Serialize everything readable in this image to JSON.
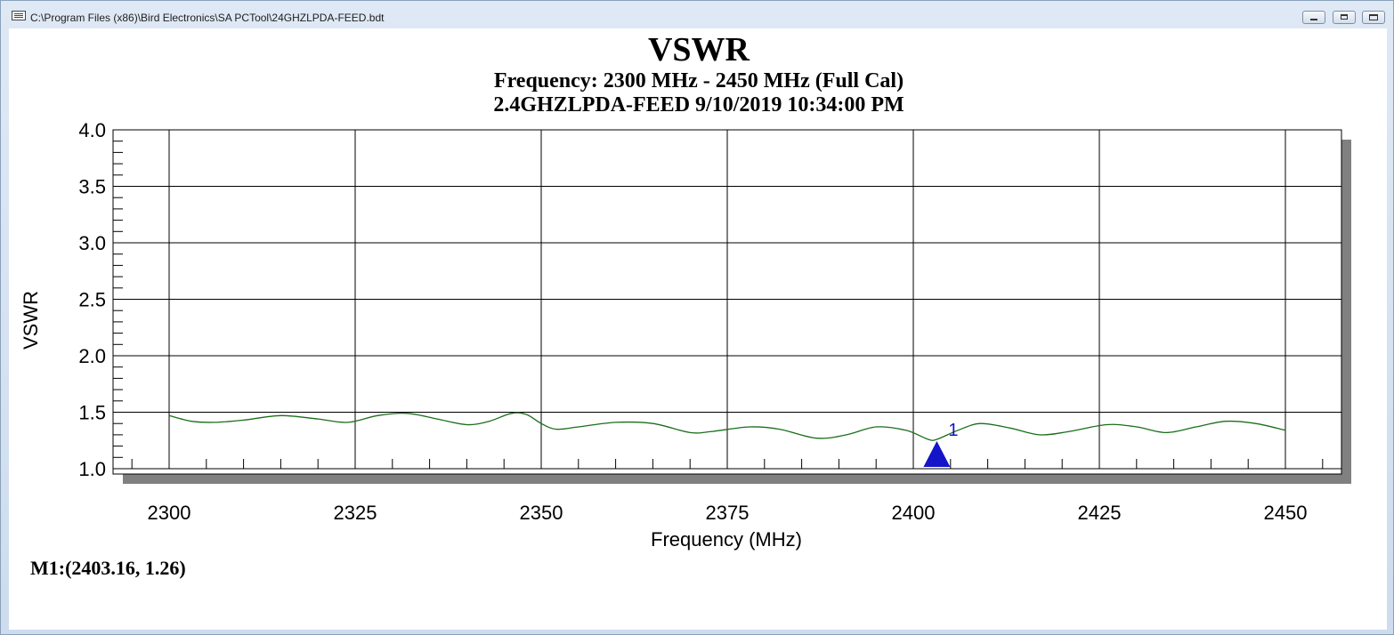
{
  "window": {
    "title": "C:\\Program Files (x86)\\Bird Electronics\\SA PCTool\\24GHZLPDA-FEED.bdt"
  },
  "chart_data": {
    "type": "line",
    "title": "VSWR",
    "subtitle_1": "Frequency: 2300 MHz - 2450 MHz (Full Cal)",
    "subtitle_2": "2.4GHZLPDA-FEED 9/10/2019 10:34:00 PM",
    "xlabel": "Frequency (MHz)",
    "ylabel": "VSWR",
    "xlim": [
      2300,
      2450
    ],
    "ylim": [
      1.0,
      4.0
    ],
    "x_ticks": [
      "2300",
      "2325",
      "2350",
      "2375",
      "2400",
      "2425",
      "2450"
    ],
    "y_ticks": [
      "1.0",
      "1.5",
      "2.0",
      "2.5",
      "3.0",
      "3.5",
      "4.0"
    ],
    "grid": true,
    "line_color": "#1a6e1a",
    "marker_color": "#1414c8",
    "series": [
      {
        "x": [
          2300,
          2303,
          2306,
          2310,
          2315,
          2320,
          2324,
          2328,
          2332,
          2336,
          2340,
          2343,
          2346,
          2348,
          2350,
          2352,
          2355,
          2360,
          2365,
          2370,
          2373,
          2378,
          2382,
          2387,
          2391,
          2395,
          2399,
          2402,
          2403.16,
          2406,
          2409,
          2413,
          2417,
          2421,
          2426,
          2430,
          2434,
          2438,
          2442,
          2446,
          2450
        ],
        "y": [
          1.47,
          1.42,
          1.41,
          1.43,
          1.47,
          1.44,
          1.41,
          1.47,
          1.49,
          1.44,
          1.39,
          1.42,
          1.49,
          1.48,
          1.4,
          1.35,
          1.37,
          1.41,
          1.4,
          1.32,
          1.33,
          1.37,
          1.35,
          1.27,
          1.3,
          1.37,
          1.34,
          1.26,
          1.26,
          1.34,
          1.4,
          1.36,
          1.3,
          1.33,
          1.39,
          1.37,
          1.32,
          1.37,
          1.42,
          1.4,
          1.34
        ]
      }
    ],
    "markers": [
      {
        "label": "1",
        "x": 2403.16,
        "y": 1.26
      }
    ]
  },
  "readout": {
    "marker_1": "M1:(2403.16,  1.26)"
  }
}
